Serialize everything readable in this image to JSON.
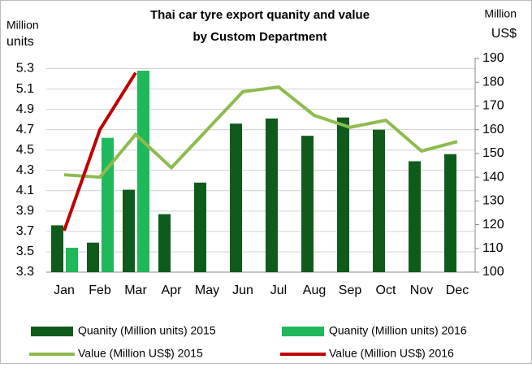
{
  "chart_data": {
    "type": "bar",
    "title": [
      "Thai car tyre export quanity and value",
      "by Custom Department"
    ],
    "y_label": [
      "Million",
      "units"
    ],
    "y2_label": [
      "Million",
      "US$"
    ],
    "categories": [
      "Jan",
      "Feb",
      "Mar",
      "Apr",
      "May",
      "Jun",
      "Jul",
      "Aug",
      "Sep",
      "Oct",
      "Nov",
      "Dec"
    ],
    "series": [
      {
        "name": "Quanity (Million units) 2015",
        "type": "bar",
        "color": "#0f5b1c",
        "values": [
          3.76,
          3.59,
          4.11,
          3.87,
          4.18,
          4.76,
          4.81,
          4.64,
          4.82,
          4.7,
          4.39,
          4.46
        ]
      },
      {
        "name": "Quanity (Million units) 2016",
        "type": "bar",
        "color": "#1fb85a",
        "values": [
          3.54,
          4.62,
          5.28,
          null,
          null,
          null,
          null,
          null,
          null,
          null,
          null,
          null
        ]
      },
      {
        "name": "Value (Million US$) 2015",
        "type": "line",
        "axis": "y2",
        "color": "#8dbb4f",
        "values": [
          141,
          140,
          158,
          144,
          160,
          176,
          178,
          166,
          161,
          164,
          151,
          155
        ]
      },
      {
        "name": "Value (Million US$) 2016",
        "type": "line",
        "axis": "y2",
        "color": "#c00000",
        "values": [
          117.5,
          160,
          184,
          null,
          null,
          null,
          null,
          null,
          null,
          null,
          null,
          null
        ]
      }
    ],
    "ylim": [
      3.3,
      5.4
    ],
    "yticks": [
      3.3,
      3.5,
      3.7,
      3.9,
      4.1,
      4.3,
      4.5,
      4.7,
      4.9,
      5.1,
      5.3
    ],
    "y2lim": [
      100,
      190
    ],
    "y2ticks": [
      100,
      110,
      120,
      130,
      140,
      150,
      160,
      170,
      180,
      190
    ],
    "grid": true,
    "legend": "bottom"
  }
}
